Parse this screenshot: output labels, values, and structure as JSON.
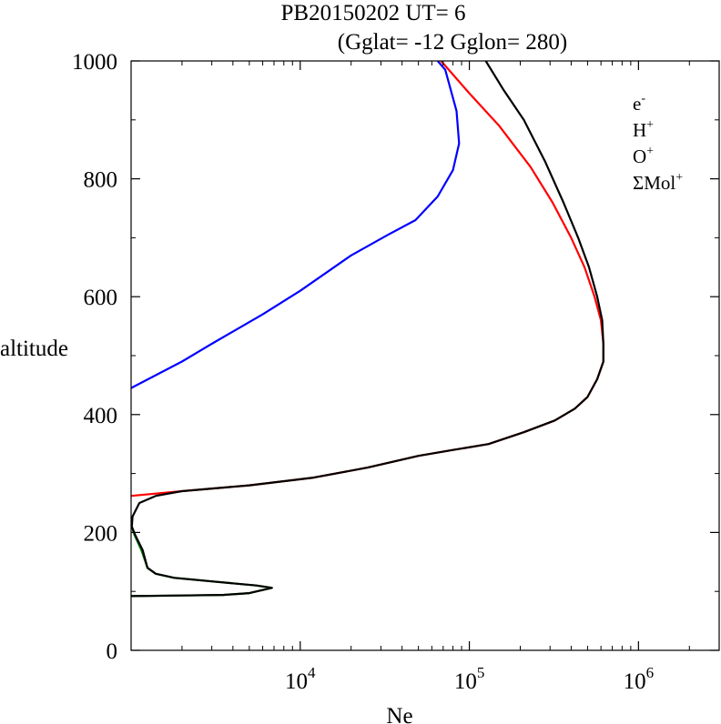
{
  "chart_data": {
    "type": "line",
    "title": "PB20150202   UT=  6",
    "subtitle": "(Gglat= -12   Gglon=  280)",
    "xlabel": "Ne",
    "ylabel": "altitude",
    "xscale": "log",
    "xlim": [
      1000,
      3000000
    ],
    "ylim": [
      0,
      1000
    ],
    "yticks": [
      0,
      200,
      400,
      600,
      800,
      1000
    ],
    "ytick_labels": [
      "0",
      "200",
      "400",
      "600",
      "800",
      "1000"
    ],
    "xticks": [
      {
        "value": 10000,
        "base": "10",
        "exp": "4"
      },
      {
        "value": 100000,
        "base": "10",
        "exp": "5"
      },
      {
        "value": 1000000,
        "base": "10",
        "exp": "6"
      }
    ],
    "legend_position": "top-right",
    "series": [
      {
        "name": "e",
        "sup": "-",
        "color": "#000000",
        "points": [
          [
            1000,
            92
          ],
          [
            2000,
            93
          ],
          [
            3500,
            94
          ],
          [
            5000,
            97
          ],
          [
            6800,
            106
          ],
          [
            5500,
            110
          ],
          [
            3000,
            117
          ],
          [
            1800,
            123
          ],
          [
            1400,
            130
          ],
          [
            1250,
            140
          ],
          [
            1170,
            170
          ],
          [
            1060,
            195
          ],
          [
            1010,
            210
          ],
          [
            1020,
            227
          ],
          [
            1120,
            250
          ],
          [
            1400,
            262
          ],
          [
            2000,
            270
          ],
          [
            5000,
            280
          ],
          [
            12000,
            293
          ],
          [
            25000,
            310
          ],
          [
            50000,
            330
          ],
          [
            80000,
            340
          ],
          [
            130000,
            350
          ],
          [
            210000,
            370
          ],
          [
            320000,
            390
          ],
          [
            420000,
            410
          ],
          [
            500000,
            430
          ],
          [
            570000,
            460
          ],
          [
            620000,
            490
          ],
          [
            620000,
            520
          ],
          [
            610000,
            560
          ],
          [
            570000,
            600
          ],
          [
            510000,
            650
          ],
          [
            440000,
            700
          ],
          [
            360000,
            760
          ],
          [
            280000,
            830
          ],
          [
            210000,
            900
          ],
          [
            160000,
            950
          ],
          [
            125000,
            1000
          ]
        ]
      },
      {
        "name": "H",
        "sup": "+",
        "color": "#0000ff",
        "points": [
          [
            1000,
            445
          ],
          [
            2000,
            490
          ],
          [
            3000,
            520
          ],
          [
            6000,
            570
          ],
          [
            10000,
            610
          ],
          [
            20000,
            670
          ],
          [
            33000,
            705
          ],
          [
            48000,
            730
          ],
          [
            65000,
            770
          ],
          [
            80000,
            815
          ],
          [
            87000,
            860
          ],
          [
            84000,
            915
          ],
          [
            72000,
            985
          ],
          [
            65000,
            1000
          ]
        ]
      },
      {
        "name": "O",
        "sup": "+",
        "color": "#ff0000",
        "points": [
          [
            1000,
            262
          ],
          [
            2000,
            270
          ],
          [
            5000,
            280
          ],
          [
            12000,
            293
          ],
          [
            25000,
            310
          ],
          [
            50000,
            330
          ],
          [
            80000,
            340
          ],
          [
            130000,
            350
          ],
          [
            210000,
            370
          ],
          [
            320000,
            390
          ],
          [
            420000,
            410
          ],
          [
            500000,
            430
          ],
          [
            570000,
            460
          ],
          [
            620000,
            490
          ],
          [
            620000,
            520
          ],
          [
            600000,
            560
          ],
          [
            550000,
            600
          ],
          [
            480000,
            650
          ],
          [
            400000,
            700
          ],
          [
            310000,
            760
          ],
          [
            230000,
            820
          ],
          [
            150000,
            890
          ],
          [
            100000,
            945
          ],
          [
            68000,
            1000
          ]
        ]
      },
      {
        "name": "ΣMol",
        "sup": "+",
        "color": "#008000",
        "points": [
          [
            1000,
            92
          ],
          [
            2000,
            93
          ],
          [
            3500,
            94
          ],
          [
            5000,
            97
          ],
          [
            6800,
            106
          ],
          [
            5500,
            110
          ],
          [
            3000,
            117
          ],
          [
            1800,
            123
          ],
          [
            1400,
            130
          ],
          [
            1250,
            140
          ],
          [
            1150,
            170
          ],
          [
            1050,
            195
          ],
          [
            1000,
            213
          ]
        ]
      }
    ]
  }
}
